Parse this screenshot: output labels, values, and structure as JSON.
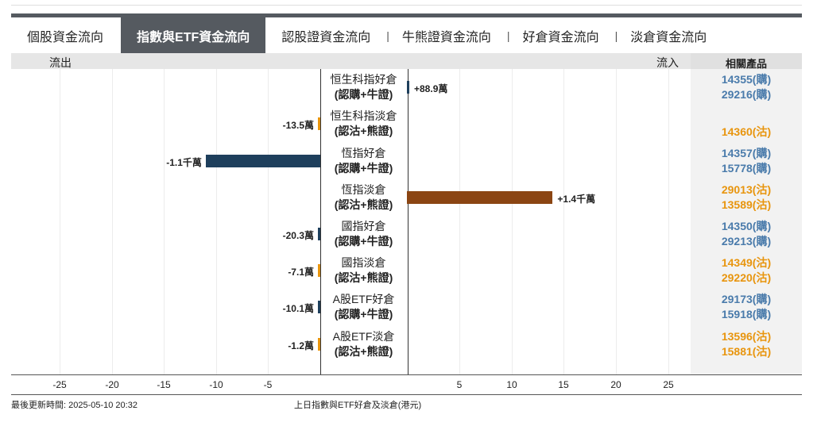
{
  "tabs": [
    {
      "label": "個股資金流向",
      "active": false
    },
    {
      "label": "指數與ETF資金流向",
      "active": true
    },
    {
      "label": "認股證資金流向",
      "active": false
    },
    {
      "label": "牛熊證資金流向",
      "active": false
    },
    {
      "label": "好倉資金流向",
      "active": false
    },
    {
      "label": "淡倉資金流向",
      "active": false
    }
  ],
  "header": {
    "outflow": "流出",
    "inflow": "流入",
    "products": "相關產品"
  },
  "colors": {
    "bull_outflow": "#1e3f5c",
    "bull_inflow": "#1e3f5c",
    "bear_inflow": "#8b4513",
    "bear_outflow": "#e8950e",
    "buy_code": "#4a7bab",
    "put_code": "#e8950e"
  },
  "rows": [
    {
      "name": "恒生科指好倉",
      "sub": "(認購+牛證)",
      "value": 0.0889,
      "label": "+88.9萬",
      "type": "bull",
      "products": [
        {
          "code": "14355(購)",
          "kind": "buy"
        },
        {
          "code": "29216(購)",
          "kind": "buy"
        }
      ]
    },
    {
      "name": "恒生科指淡倉",
      "sub": "(認沽+熊證)",
      "value": -0.0135,
      "label": "-13.5萬",
      "type": "bear",
      "products": [
        {
          "code": "14360(沽)",
          "kind": "put"
        }
      ]
    },
    {
      "name": "恆指好倉",
      "sub": "(認購+牛證)",
      "value": -11,
      "label": "-1.1千萬",
      "type": "bull",
      "products": [
        {
          "code": "14357(購)",
          "kind": "buy"
        },
        {
          "code": "15778(購)",
          "kind": "buy"
        }
      ]
    },
    {
      "name": "恆指淡倉",
      "sub": "(認沽+熊證)",
      "value": 14,
      "label": "+1.4千萬",
      "type": "bear",
      "products": [
        {
          "code": "29013(沽)",
          "kind": "put"
        },
        {
          "code": "13589(沽)",
          "kind": "put"
        }
      ]
    },
    {
      "name": "國指好倉",
      "sub": "(認購+牛證)",
      "value": -0.0203,
      "label": "-20.3萬",
      "type": "bull",
      "products": [
        {
          "code": "14350(購)",
          "kind": "buy"
        },
        {
          "code": "29213(購)",
          "kind": "buy"
        }
      ]
    },
    {
      "name": "國指淡倉",
      "sub": "(認沽+熊證)",
      "value": -0.0071,
      "label": "-7.1萬",
      "type": "bear",
      "products": [
        {
          "code": "14349(沽)",
          "kind": "put"
        },
        {
          "code": "29220(沽)",
          "kind": "put"
        }
      ]
    },
    {
      "name": "A股ETF好倉",
      "sub": "(認購+牛證)",
      "value": -0.0101,
      "label": "-10.1萬",
      "type": "bull",
      "products": [
        {
          "code": "29173(購)",
          "kind": "buy"
        },
        {
          "code": "15918(購)",
          "kind": "buy"
        }
      ]
    },
    {
      "name": "A股ETF淡倉",
      "sub": "(認沽+熊證)",
      "value": -0.0012,
      "label": "-1.2萬",
      "type": "bear",
      "products": [
        {
          "code": "13596(沽)",
          "kind": "put"
        },
        {
          "code": "15881(沽)",
          "kind": "put"
        }
      ]
    }
  ],
  "axis_ticks_left": [
    "-25",
    "-20",
    "-15",
    "-10",
    "-5"
  ],
  "axis_ticks_right": [
    "5",
    "10",
    "15",
    "20",
    "25"
  ],
  "footer": {
    "updated": "最後更新時間: 2025-05-10 20:32",
    "caption": "上日指數與ETF好倉及淡倉(港元)"
  }
}
